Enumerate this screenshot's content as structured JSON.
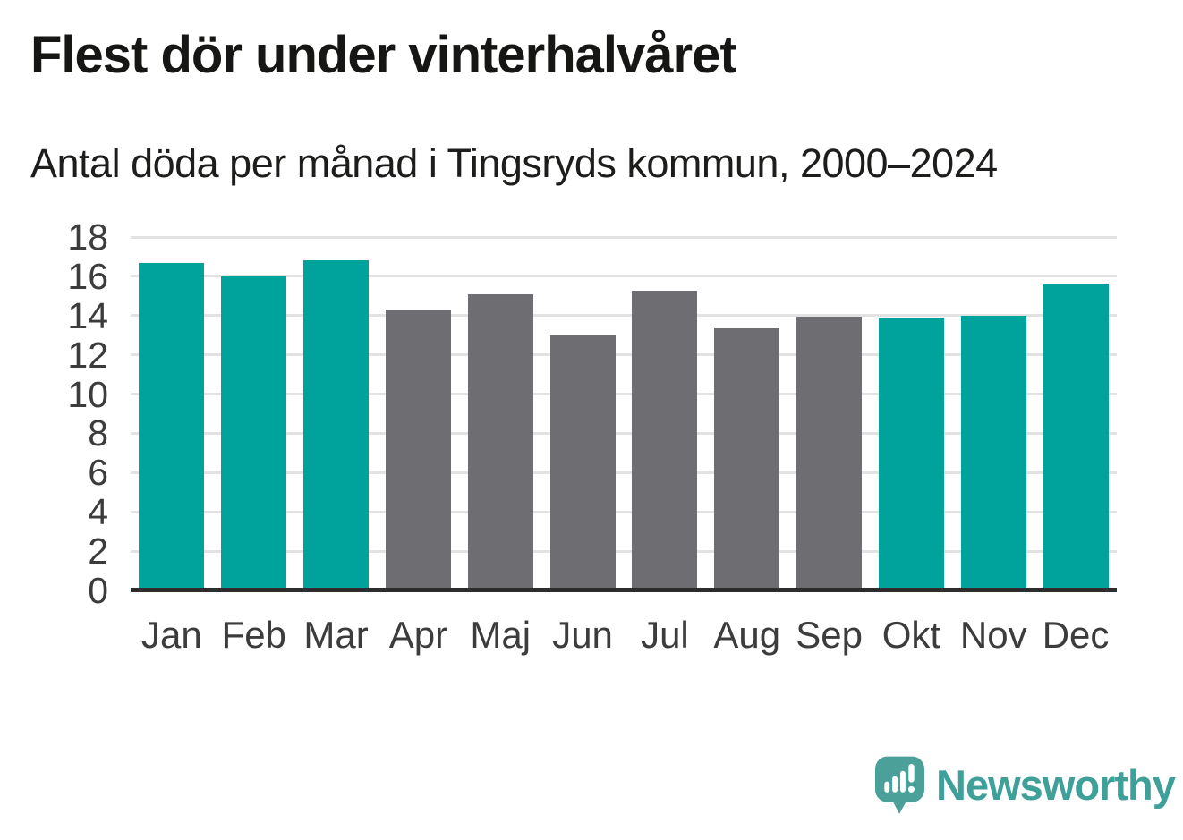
{
  "header": {
    "title": "Flest dör under vinterhalvåret",
    "subtitle": "Antal döda per månad i Tingsryds kommun, 2000–2024"
  },
  "chart_data": {
    "type": "bar",
    "title": "Flest dör under vinterhalvåret",
    "subtitle": "Antal döda per månad i Tingsryds kommun, 2000–2024",
    "categories": [
      "Jan",
      "Feb",
      "Mar",
      "Apr",
      "Maj",
      "Jun",
      "Jul",
      "Aug",
      "Sep",
      "Okt",
      "Nov",
      "Dec"
    ],
    "values": [
      16.7,
      16.0,
      16.8,
      14.3,
      15.1,
      13.0,
      15.25,
      13.35,
      13.95,
      13.9,
      14.0,
      15.65
    ],
    "bar_groups": [
      "winter",
      "winter",
      "winter",
      "summer",
      "summer",
      "summer",
      "summer",
      "summer",
      "summer",
      "winter",
      "winter",
      "winter"
    ],
    "palette": {
      "winter": "#00a39b",
      "summer": "#6e6d72"
    },
    "xlabel": "",
    "ylabel": "",
    "ylim": [
      0,
      18
    ],
    "yticks": [
      0,
      2,
      4,
      6,
      8,
      10,
      12,
      14,
      16,
      18
    ],
    "grid": "horizontal",
    "legend": "none",
    "axis_color": "#2d2d2d",
    "grid_color": "#e2e2e2"
  },
  "footer": {
    "brand": "Newsworthy",
    "brand_color": "#3f9f99",
    "logo_icon": "newsworthy-speech-bubble-bar-chart-icon",
    "logo_icon_color": "#4ba19a"
  }
}
